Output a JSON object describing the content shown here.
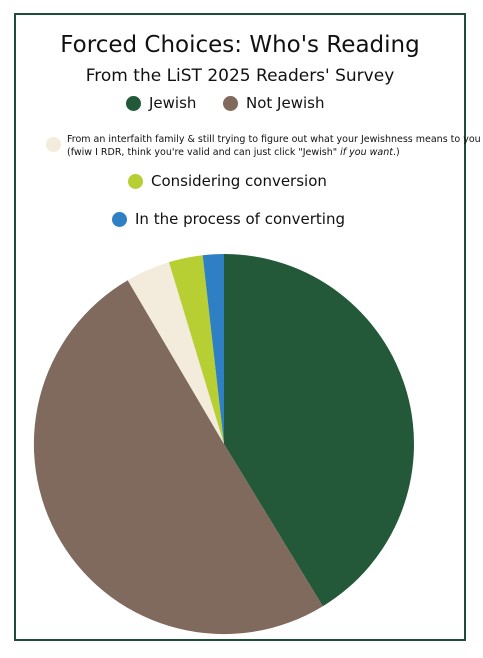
{
  "chart_data": {
    "type": "pie",
    "title": "Forced Choices: Who's Reading",
    "subtitle": "From the LiST 2025 Readers' Survey",
    "legend_position": "top",
    "slices": [
      {
        "name": "Jewish",
        "value": 41.5,
        "color": "#235938"
      },
      {
        "name": "Not Jewish",
        "value": 50.5,
        "color": "#7f6a5d"
      },
      {
        "name": "From an interfaith family & still trying to figure out what your Jewishness means to you",
        "value": 3.8,
        "color": "#f3ecdc"
      },
      {
        "name": "Considering conversion",
        "value": 2.9,
        "color": "#b7cf33"
      },
      {
        "name": "In the process of converting",
        "value": 1.8,
        "color": "#2f7fc4"
      }
    ],
    "interfaith_note": {
      "line2_prefix": "(fwiw I RDR, think you're valid and can just click \"Jewish\" ",
      "line2_em": "if you want",
      "line2_suffix": ".)"
    }
  }
}
